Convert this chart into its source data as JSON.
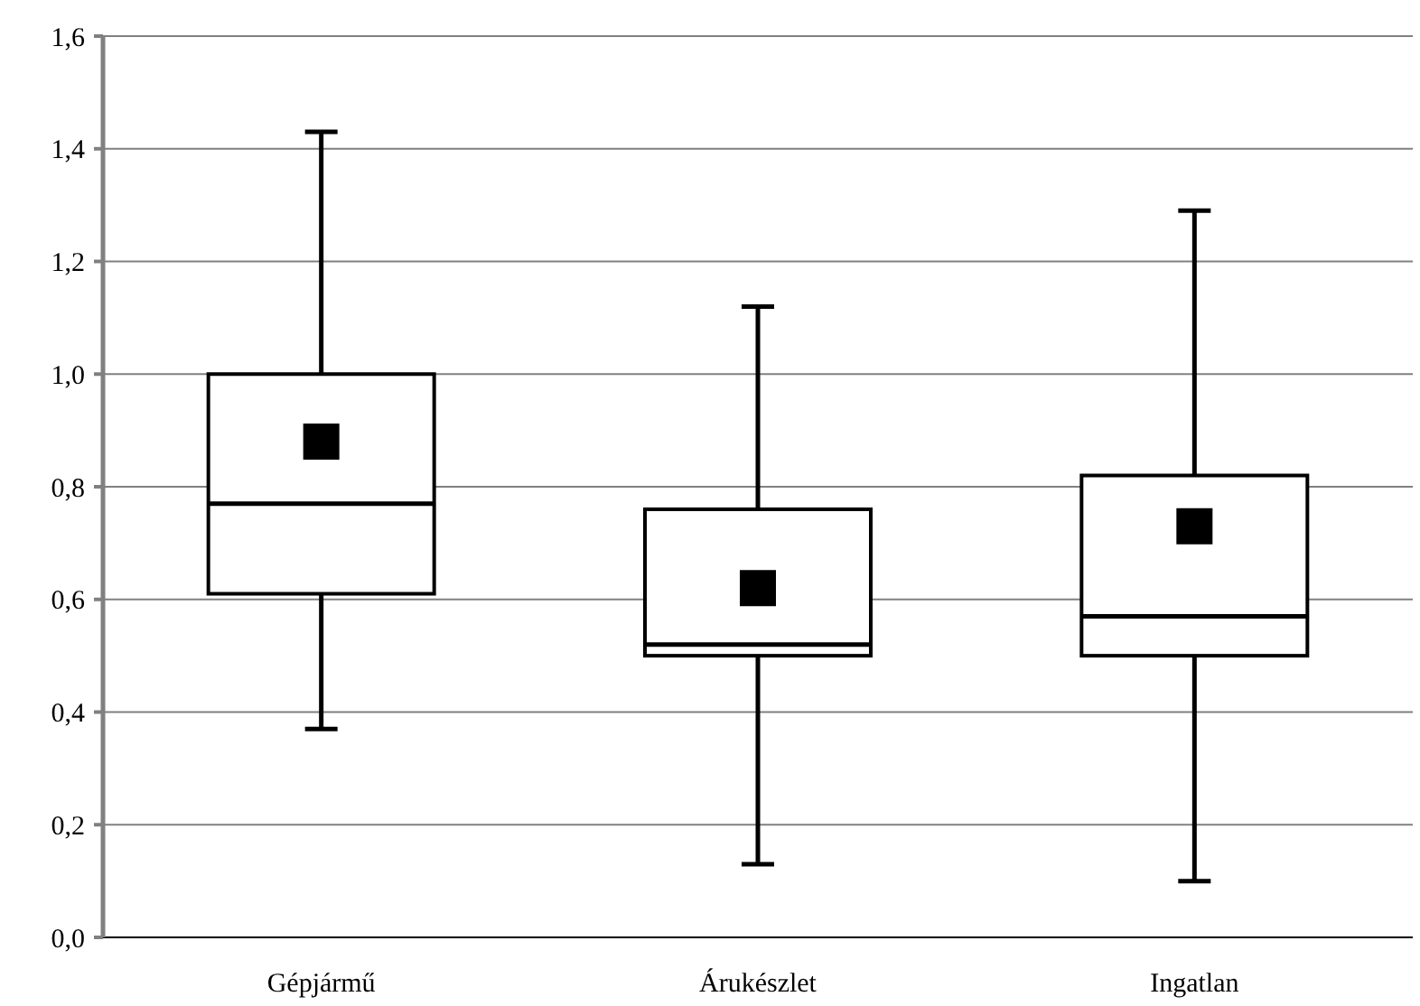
{
  "chart_data": {
    "type": "box",
    "categories": [
      "Gépjármű",
      "Árukészlet",
      "Ingatlan"
    ],
    "boxes": [
      {
        "low": 0.37,
        "q1": 0.61,
        "median": 0.77,
        "q3": 1.0,
        "high": 1.43,
        "mean": 0.88
      },
      {
        "low": 0.13,
        "q1": 0.5,
        "median": 0.52,
        "q3": 0.76,
        "high": 1.12,
        "mean": 0.62
      },
      {
        "low": 0.1,
        "q1": 0.5,
        "median": 0.57,
        "q3": 0.82,
        "high": 1.29,
        "mean": 0.73
      }
    ],
    "color": "#000000",
    "ylim": [
      0,
      1.6
    ],
    "yticks": [
      {
        "value": 0,
        "label": "0,0"
      },
      {
        "value": 0.2,
        "label": "0,2"
      },
      {
        "value": 0.4,
        "label": "0,4"
      },
      {
        "value": 0.6,
        "label": "0,6"
      },
      {
        "value": 0.8,
        "label": "0,8"
      },
      {
        "value": 1.0,
        "label": "1,0"
      },
      {
        "value": 1.2,
        "label": "1,2"
      },
      {
        "value": 1.4,
        "label": "1,4"
      },
      {
        "value": 1.6,
        "label": "1,6"
      }
    ],
    "grid": "y",
    "marker": "square"
  }
}
